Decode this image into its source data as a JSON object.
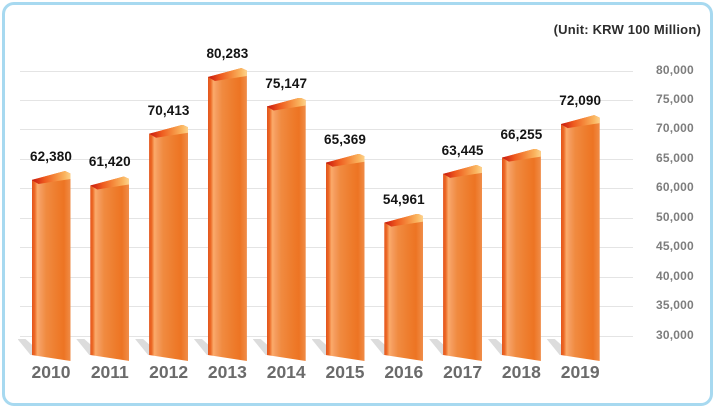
{
  "unit_label": "(Unit: KRW 100 Million)",
  "colors": {
    "frame_border": "#a7d9f0",
    "background": "#ffffff",
    "gridline": "#e4e4e4",
    "bar_main": "#ee7c2c",
    "bar_highlight": "#fbaa6a",
    "bar_spine": "#e3541c",
    "bar_top_red": "#d32a14",
    "bar_top_light": "#fdd38d",
    "shadow": "#dcdcdc",
    "value_label_color": "#141414",
    "year_label_color": "#6b6b6b",
    "tick_label_color": "#7d7d7d",
    "unit_label_color": "#2d2d2d"
  },
  "chart_data": {
    "type": "bar",
    "title": "",
    "unit": "(Unit: KRW 100 Million)",
    "categories": [
      "2010",
      "2011",
      "2012",
      "2013",
      "2014",
      "2015",
      "2016",
      "2017",
      "2018",
      "2019"
    ],
    "values": [
      62380,
      61420,
      70413,
      80283,
      75147,
      65369,
      54961,
      63445,
      66255,
      72090
    ],
    "value_labels": [
      "62,380",
      "61,420",
      "70,413",
      "80,283",
      "75,147",
      "65,369",
      "54,961",
      "63,445",
      "66,255",
      "72,090"
    ],
    "y_axis": {
      "side": "right",
      "tick_labels_as_printed": [
        "80,000",
        "75,000",
        "70,000",
        "65,000",
        "60,000",
        "50,000",
        "45,000",
        "40,000",
        "35,000",
        "30,000"
      ],
      "ylim": [
        30000,
        80000
      ]
    },
    "grid": true,
    "legend": false,
    "bar_style": "3d-orange-gradient"
  }
}
